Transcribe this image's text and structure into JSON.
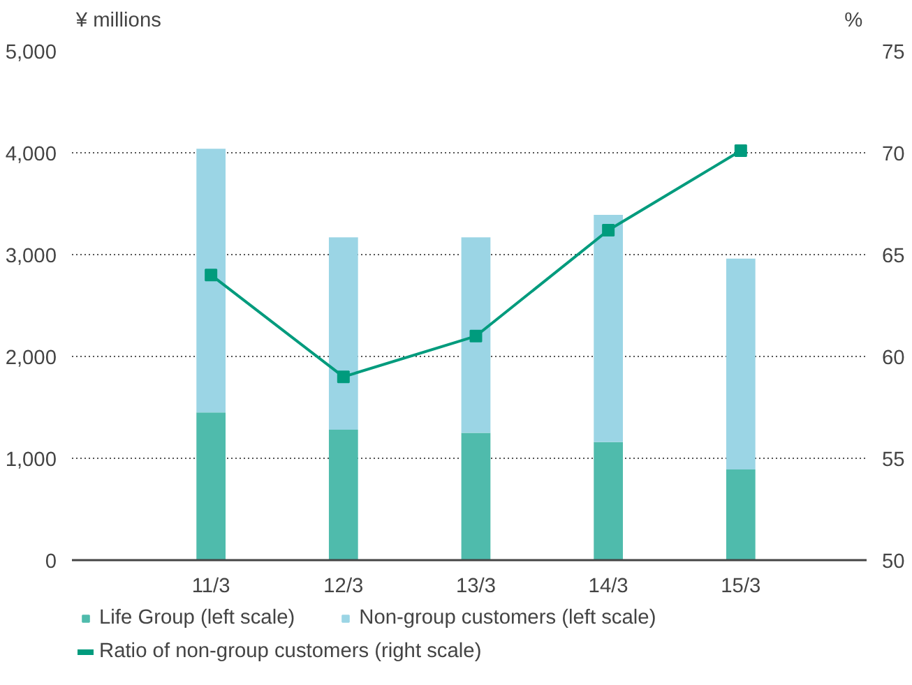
{
  "chart_data": {
    "type": "bar",
    "stacked": true,
    "categories": [
      "11/3",
      "12/3",
      "13/3",
      "14/3",
      "15/3"
    ],
    "ylabel": "¥ millions",
    "y2label": "%",
    "ylim": [
      0,
      5000
    ],
    "yticks": [
      {
        "value": 0,
        "label": "0"
      },
      {
        "value": 1000,
        "label": "1,000"
      },
      {
        "value": 2000,
        "label": "2,000"
      },
      {
        "value": 3000,
        "label": "3,000"
      },
      {
        "value": 4000,
        "label": "4,000"
      },
      {
        "value": 5000,
        "label": "5,000"
      }
    ],
    "y2lim": [
      50,
      75
    ],
    "y2ticks": [
      50,
      55,
      60,
      65,
      70,
      75
    ],
    "grid": "y",
    "legend": "bottom",
    "marker": "square",
    "line_style": "solid",
    "series": [
      {
        "name": "Life Group (left scale)",
        "color": "#4fbbac",
        "values": [
          1450,
          1280,
          1250,
          1160,
          890
        ]
      },
      {
        "name": "Non-group customers (left scale)",
        "color": "#9bd5e5",
        "values": [
          2590,
          1890,
          1920,
          2230,
          2070
        ]
      },
      {
        "name": "Ratio of non-group customers (right scale)",
        "type": "line",
        "axis": "y2",
        "color": "#009b7d",
        "values": [
          64.0,
          59.0,
          61.0,
          66.2,
          70.1
        ]
      }
    ]
  }
}
